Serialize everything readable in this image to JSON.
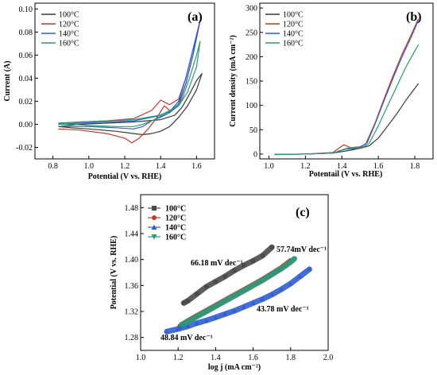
{
  "chart_data": [
    {
      "panel": "(a)",
      "type": "line",
      "xlabel": "Potential (V vs. RHE)",
      "ylabel": "Current (A)",
      "xlim": [
        0.7,
        1.7
      ],
      "ylim": [
        -0.03,
        0.105
      ],
      "xticks": [
        "0.8",
        "1.0",
        "1.2",
        "1.4",
        "1.6"
      ],
      "yticks": [
        "-0.02",
        "0.00",
        "0.02",
        "0.04",
        "0.06",
        "0.08",
        "0.10"
      ],
      "legend_position": "top-left",
      "series": [
        {
          "name": "100°C",
          "color": "#3a3a3a",
          "x": [
            0.83,
            0.95,
            1.1,
            1.25,
            1.4,
            1.48,
            1.52,
            1.56,
            1.6,
            1.63,
            1.6,
            1.55,
            1.5,
            1.45,
            1.4,
            1.35,
            1.3,
            1.25,
            1.15,
            1.0,
            0.9,
            0.83
          ],
          "y": [
            -0.002,
            0.0,
            0.001,
            0.002,
            0.004,
            0.008,
            0.015,
            0.026,
            0.038,
            0.044,
            0.03,
            0.016,
            0.006,
            -0.002,
            -0.006,
            -0.008,
            -0.009,
            -0.008,
            -0.006,
            -0.004,
            -0.003,
            -0.002
          ]
        },
        {
          "name": "120°C",
          "color": "#c0392b",
          "x": [
            0.83,
            0.95,
            1.1,
            1.25,
            1.35,
            1.4,
            1.45,
            1.5,
            1.54,
            1.58,
            1.62,
            1.58,
            1.54,
            1.5,
            1.45,
            1.42,
            1.38,
            1.33,
            1.28,
            1.24,
            1.2,
            1.1,
            0.95,
            0.83
          ],
          "y": [
            0.001,
            0.002,
            0.003,
            0.005,
            0.012,
            0.021,
            0.017,
            0.022,
            0.04,
            0.065,
            0.09,
            0.06,
            0.035,
            0.016,
            0.012,
            0.016,
            0.006,
            -0.004,
            -0.012,
            -0.016,
            -0.012,
            -0.008,
            -0.005,
            -0.004
          ]
        },
        {
          "name": "140°C",
          "color": "#2f5fd0",
          "x": [
            0.83,
            0.95,
            1.1,
            1.25,
            1.38,
            1.45,
            1.5,
            1.54,
            1.58,
            1.62,
            1.58,
            1.54,
            1.5,
            1.45,
            1.4,
            1.35,
            1.3,
            1.25,
            1.15,
            1.0,
            0.9,
            0.83
          ],
          "y": [
            0.0,
            0.001,
            0.002,
            0.003,
            0.007,
            0.011,
            0.02,
            0.04,
            0.065,
            0.09,
            0.06,
            0.035,
            0.018,
            0.01,
            0.007,
            0.003,
            -0.002,
            -0.004,
            -0.003,
            -0.002,
            -0.002,
            -0.002
          ]
        },
        {
          "name": "160°C",
          "color": "#2a9a7a",
          "x": [
            0.83,
            0.95,
            1.1,
            1.25,
            1.4,
            1.48,
            1.52,
            1.56,
            1.6,
            1.62,
            1.6,
            1.55,
            1.5,
            1.45,
            1.4,
            1.35,
            1.3,
            1.25,
            1.15,
            1.0,
            0.9,
            0.83
          ],
          "y": [
            0.001,
            0.002,
            0.003,
            0.004,
            0.008,
            0.014,
            0.022,
            0.04,
            0.06,
            0.072,
            0.05,
            0.028,
            0.016,
            0.01,
            0.006,
            0.003,
            0.0,
            -0.002,
            -0.002,
            -0.001,
            0.0,
            0.0
          ]
        }
      ]
    },
    {
      "panel": "(b)",
      "type": "line",
      "xlabel": "Potentail (V vs. RHE)",
      "ylabel": "Current density (mA cm⁻²)",
      "xlim": [
        0.95,
        1.9
      ],
      "ylim": [
        -10,
        310
      ],
      "xticks": [
        "1.0",
        "1.2",
        "1.4",
        "1.6",
        "1.8"
      ],
      "yticks": [
        "0",
        "50",
        "100",
        "150",
        "200",
        "250",
        "300"
      ],
      "legend_position": "top-left",
      "series": [
        {
          "name": "100°C",
          "color": "#3a3a3a",
          "x": [
            1.03,
            1.2,
            1.35,
            1.45,
            1.5,
            1.55,
            1.6,
            1.65,
            1.7,
            1.75,
            1.82
          ],
          "y": [
            -1,
            0,
            2,
            8,
            12,
            17,
            33,
            57,
            82,
            110,
            145
          ]
        },
        {
          "name": "120°C",
          "color": "#c0392b",
          "x": [
            1.03,
            1.2,
            1.35,
            1.41,
            1.45,
            1.5,
            1.53,
            1.58,
            1.63,
            1.68,
            1.73,
            1.78,
            1.82
          ],
          "y": [
            -1,
            0,
            3,
            19,
            13,
            15,
            20,
            62,
            112,
            160,
            205,
            245,
            278
          ]
        },
        {
          "name": "140°C",
          "color": "#2f5fd0",
          "x": [
            1.03,
            1.2,
            1.35,
            1.42,
            1.47,
            1.51,
            1.54,
            1.58,
            1.63,
            1.68,
            1.73,
            1.78,
            1.82
          ],
          "y": [
            -1,
            0,
            2,
            10,
            11,
            16,
            24,
            60,
            108,
            155,
            200,
            240,
            275
          ]
        },
        {
          "name": "160°C",
          "color": "#2a9a7a",
          "x": [
            1.03,
            1.2,
            1.35,
            1.43,
            1.48,
            1.52,
            1.55,
            1.6,
            1.65,
            1.7,
            1.75,
            1.82
          ],
          "y": [
            -1,
            0,
            2,
            12,
            13,
            15,
            22,
            58,
            98,
            138,
            178,
            225
          ]
        }
      ]
    },
    {
      "panel": "(c)",
      "type": "scatter",
      "xlabel": "log j (mA cm⁻²)",
      "ylabel": "Potential (V vs. RHE)",
      "xlim": [
        1.0,
        2.0
      ],
      "ylim": [
        1.26,
        1.5
      ],
      "xticks": [
        "1.0",
        "1.2",
        "1.4",
        "1.6",
        "1.8",
        "2.0"
      ],
      "yticks": [
        "1.28",
        "1.32",
        "1.36",
        "1.40",
        "1.44",
        "1.48"
      ],
      "legend_position": "top-left",
      "annotations": [
        "66.18 mV dec⁻¹",
        "57.74mV dec⁻¹",
        "43.78 mV dec⁻¹",
        "48.84 mV dec⁻¹"
      ],
      "series": [
        {
          "name": "100°C",
          "color": "#4a4a4a",
          "marker": "square",
          "x": [
            1.23,
            1.25,
            1.3,
            1.35,
            1.4,
            1.45,
            1.5,
            1.55,
            1.6,
            1.65,
            1.7
          ],
          "y": [
            1.333,
            1.336,
            1.347,
            1.358,
            1.366,
            1.374,
            1.383,
            1.391,
            1.398,
            1.406,
            1.419
          ]
        },
        {
          "name": "120°C",
          "color": "#c0392b",
          "marker": "circle",
          "x": [
            1.21,
            1.25,
            1.3,
            1.35,
            1.4,
            1.45,
            1.5,
            1.55,
            1.6,
            1.65,
            1.7,
            1.75,
            1.8
          ],
          "y": [
            1.297,
            1.305,
            1.313,
            1.321,
            1.329,
            1.337,
            1.345,
            1.353,
            1.361,
            1.369,
            1.378,
            1.387,
            1.398
          ]
        },
        {
          "name": "140°C",
          "color": "#2f5fd0",
          "marker": "triangle-up",
          "x": [
            1.14,
            1.2,
            1.25,
            1.3,
            1.35,
            1.4,
            1.45,
            1.5,
            1.55,
            1.6,
            1.65,
            1.7,
            1.75,
            1.8,
            1.85,
            1.9
          ],
          "y": [
            1.289,
            1.293,
            1.297,
            1.302,
            1.306,
            1.311,
            1.316,
            1.321,
            1.327,
            1.333,
            1.339,
            1.346,
            1.354,
            1.363,
            1.374,
            1.385
          ]
        },
        {
          "name": "160°C",
          "color": "#2a9a7a",
          "marker": "triangle-down",
          "x": [
            1.22,
            1.25,
            1.3,
            1.35,
            1.4,
            1.45,
            1.5,
            1.55,
            1.6,
            1.65,
            1.7,
            1.75,
            1.8,
            1.82
          ],
          "y": [
            1.3,
            1.304,
            1.312,
            1.32,
            1.328,
            1.336,
            1.344,
            1.352,
            1.36,
            1.368,
            1.377,
            1.386,
            1.396,
            1.401
          ]
        }
      ]
    }
  ]
}
